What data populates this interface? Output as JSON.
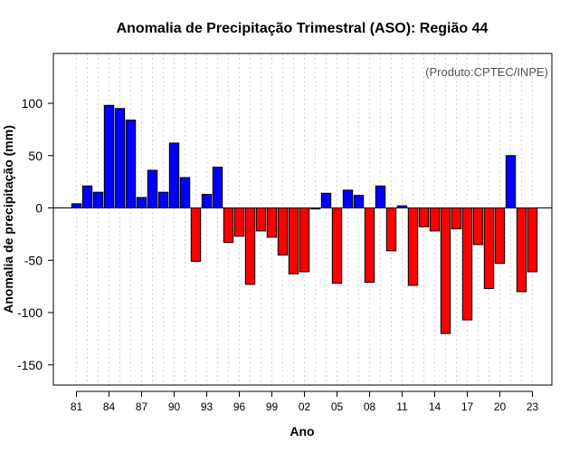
{
  "chart_data": {
    "type": "bar",
    "title": "Anomalia de Precipitação Trimestral (ASO): Região 44",
    "xlabel": "Ano",
    "ylabel": "Anomalia de precipitação (mm)",
    "credit": "(Produto:CPTEC/INPE)",
    "ylim": [
      -170,
      148
    ],
    "yticks": [
      100,
      50,
      0,
      -50,
      -100,
      -150
    ],
    "xtick_labels": [
      "81",
      "84",
      "87",
      "90",
      "93",
      "96",
      "99",
      "02",
      "05",
      "08",
      "11",
      "14",
      "17",
      "20",
      "23"
    ],
    "xtick_years": [
      1981,
      1984,
      1987,
      1990,
      1993,
      1996,
      1999,
      2002,
      2005,
      2008,
      2011,
      2014,
      2017,
      2020,
      2023
    ],
    "years": [
      1981,
      1982,
      1983,
      1984,
      1985,
      1986,
      1987,
      1988,
      1989,
      1990,
      1991,
      1992,
      1993,
      1994,
      1995,
      1996,
      1997,
      1998,
      1999,
      2000,
      2001,
      2002,
      2003,
      2004,
      2005,
      2006,
      2007,
      2008,
      2009,
      2010,
      2011,
      2012,
      2013,
      2014,
      2015,
      2016,
      2017,
      2018,
      2019,
      2020,
      2021,
      2022,
      2023
    ],
    "values": [
      4,
      21,
      15,
      98,
      95,
      84,
      10,
      36,
      15,
      62,
      29,
      -51,
      13,
      39,
      -33,
      -27,
      -73,
      -22,
      -28,
      -45,
      -63,
      -61,
      -1,
      14,
      -72,
      17,
      12,
      -71,
      21,
      -41,
      2,
      -74,
      -18,
      -22,
      -120,
      -20,
      -107,
      -35,
      -77,
      -53,
      50,
      -80,
      -61
    ],
    "colors": {
      "positive": "#0000ff",
      "negative": "#ff0000",
      "grid": "#d3d3d3",
      "axis": "#000000"
    }
  }
}
